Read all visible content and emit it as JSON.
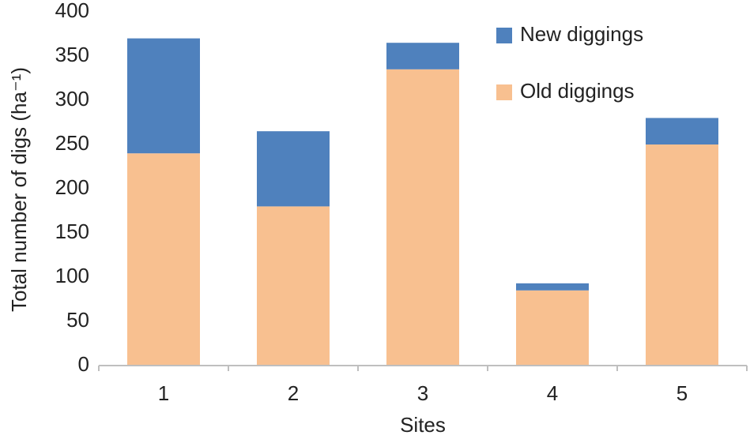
{
  "chart_data": {
    "type": "stacked-bar",
    "y_label": "Total number of digs (ha⁻¹)",
    "x_label": "Sites",
    "categories": [
      "1",
      "2",
      "3",
      "4",
      "5"
    ],
    "series": [
      {
        "name": "Old diggings",
        "color": "#f8c090",
        "values": [
          240,
          180,
          335,
          85,
          250
        ]
      },
      {
        "name": "New diggings",
        "color": "#4f81bd",
        "values": [
          130,
          85,
          30,
          8,
          30
        ]
      }
    ],
    "ylim": [
      0,
      400
    ],
    "yticks": [
      0,
      50,
      100,
      150,
      200,
      250,
      300,
      350,
      400
    ],
    "legend": "top-right"
  }
}
